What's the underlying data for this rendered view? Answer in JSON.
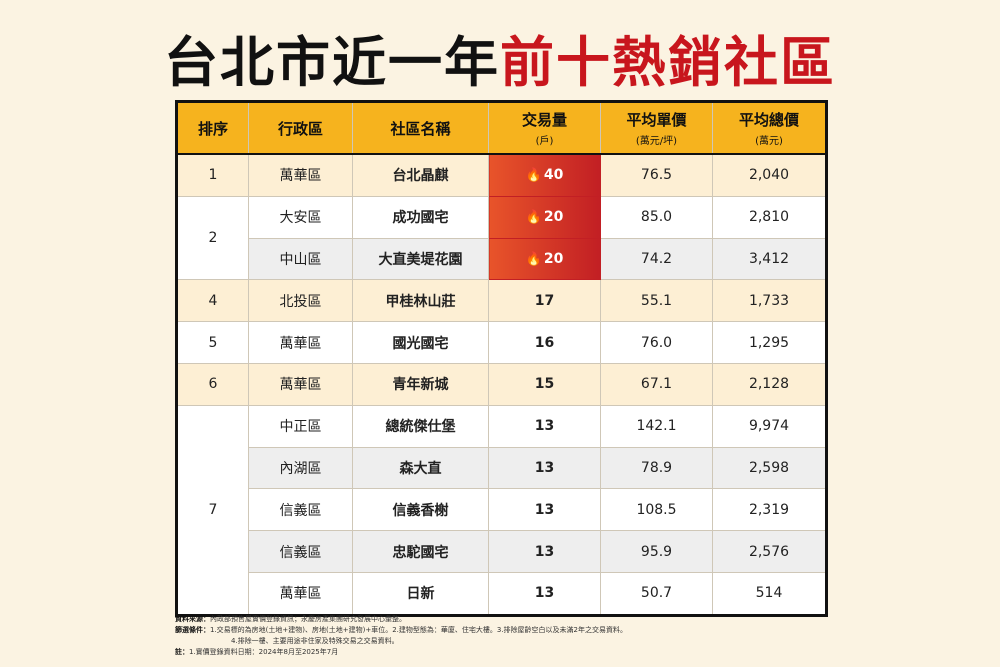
{
  "title": {
    "part1": "台北市近一年",
    "part2": "前十熱銷社區"
  },
  "headers": {
    "rank": "排序",
    "district": "行政區",
    "community": "社區名稱",
    "volume": "交易量",
    "volume_unit": "(戶)",
    "unit_price": "平均單價",
    "unit_price_unit": "(萬元/坪)",
    "total_price": "平均總價",
    "total_price_unit": "(萬元)"
  },
  "rows": [
    {
      "rank": "1",
      "district": "萬華區",
      "community": "台北晶麒",
      "volume": "40",
      "unit_price": "76.5",
      "total_price": "2,040"
    },
    {
      "rank": "2",
      "district": "大安區",
      "community": "成功國宅",
      "volume": "20",
      "unit_price": "85.0",
      "total_price": "2,810"
    },
    {
      "rank": "",
      "district": "中山區",
      "community": "大直美堤花園",
      "volume": "20",
      "unit_price": "74.2",
      "total_price": "3,412"
    },
    {
      "rank": "4",
      "district": "北投區",
      "community": "甲桂林山莊",
      "volume": "17",
      "unit_price": "55.1",
      "total_price": "1,733"
    },
    {
      "rank": "5",
      "district": "萬華區",
      "community": "國光國宅",
      "volume": "16",
      "unit_price": "76.0",
      "total_price": "1,295"
    },
    {
      "rank": "6",
      "district": "萬華區",
      "community": "青年新城",
      "volume": "15",
      "unit_price": "67.1",
      "total_price": "2,128"
    },
    {
      "rank": "7",
      "district": "中正區",
      "community": "總統傑仕堡",
      "volume": "13",
      "unit_price": "142.1",
      "total_price": "9,974"
    },
    {
      "rank": "",
      "district": "內湖區",
      "community": "森大直",
      "volume": "13",
      "unit_price": "78.9",
      "total_price": "2,598"
    },
    {
      "rank": "",
      "district": "信義區",
      "community": "信義香榭",
      "volume": "13",
      "unit_price": "108.5",
      "total_price": "2,319"
    },
    {
      "rank": "",
      "district": "信義區",
      "community": "忠駝國宅",
      "volume": "13",
      "unit_price": "95.9",
      "total_price": "2,576"
    },
    {
      "rank": "",
      "district": "萬華區",
      "community": "日新",
      "volume": "13",
      "unit_price": "50.7",
      "total_price": "514"
    }
  ],
  "hot_icon": "fire-icon",
  "colors": {
    "header": "#f6b31e",
    "title_red": "#c8161d",
    "hot_start": "#e8542a",
    "hot_end": "#c21f24"
  },
  "notes": {
    "source_label": "資料來源：",
    "source_text": "內政部預售屋實價登錄資訊；永慶房產集團研究發展中心彙整。",
    "filter_label": "篩選條件：",
    "filter_text": "1.交易標的為房地(土地+建物)、房地(土地+建物)+車位。2.建物型態為：華廈、住宅大樓。3.排除屋齡空白以及未滿2年之交易資料。",
    "filter_text2": "4.排除一樓、主要用途非住家及特殊交易之交易資料。",
    "note_label": "註：",
    "note_text": "1.實價登錄資料日期：2024年8月至2025年7月"
  }
}
